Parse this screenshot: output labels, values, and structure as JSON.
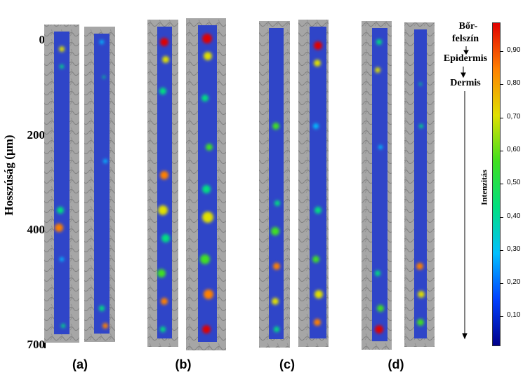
{
  "y_axis": {
    "label": "Hosszúság (µm)",
    "ticks": [
      "0",
      "200",
      "400",
      "700"
    ]
  },
  "panels": [
    {
      "label": "(a)"
    },
    {
      "label": "(b)"
    },
    {
      "label": "(c)"
    },
    {
      "label": "(d)"
    }
  ],
  "layers": {
    "surface_line1": "Bőr-",
    "surface_line2": "felszín",
    "epidermis": "Epidermis",
    "dermis": "Dermis"
  },
  "colorbar": {
    "label": "Intenzitás",
    "ticks": [
      "0,90",
      "0,80",
      "0,70",
      "0,60",
      "0,50",
      "0,40",
      "0,30",
      "0,20",
      "0,10"
    ],
    "colors": [
      "#00008b",
      "#0040ff",
      "#00c0ff",
      "#00e080",
      "#40e020",
      "#e0e000",
      "#ff8000",
      "#e00000"
    ]
  }
}
